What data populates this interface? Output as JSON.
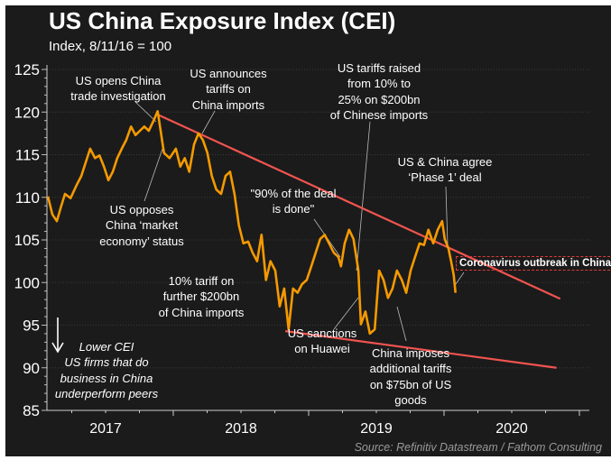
{
  "chart_data": {
    "type": "line",
    "title": "US China Exposure Index (CEI)",
    "subtitle": "Index, 8/11/16 = 100",
    "xlabel": "",
    "ylabel": "",
    "ylim": [
      85,
      125
    ],
    "yticks": [
      "125",
      "120",
      "115",
      "110",
      "105",
      "100",
      "95",
      "90",
      "85"
    ],
    "xticks": [
      "2017",
      "2018",
      "2019",
      "2020"
    ],
    "xlim": [
      "2017-01-15",
      "2021-01-15"
    ],
    "grid": "horizontal dotted",
    "legend": "none",
    "colors": {
      "series": "#f59a00",
      "trend": "#f0544f",
      "background": "#1b1b1b",
      "annotation_box": "#e03a3a"
    },
    "series": [
      {
        "dates": [
          "2017-01-28",
          "2017-02-09",
          "2017-02-21",
          "2017-03-05",
          "2017-03-15",
          "2017-03-30",
          "2017-04-16",
          "2017-04-28",
          "2017-05-10",
          "2017-05-22",
          "2017-06-04",
          "2017-06-16",
          "2017-06-28",
          "2017-07-10",
          "2017-07-22",
          "2017-08-03",
          "2017-08-15",
          "2017-08-27",
          "2017-09-09",
          "2017-09-21",
          "2017-10-03",
          "2017-10-15",
          "2017-10-27",
          "2017-11-08",
          "2017-11-20",
          "2017-11-28",
          "2017-12-07",
          "2017-12-22",
          "2018-01-08",
          "2018-01-20",
          "2018-02-01",
          "2018-02-13",
          "2018-02-26",
          "2018-03-10",
          "2018-03-22",
          "2018-04-03",
          "2018-04-15",
          "2018-04-27",
          "2018-05-10",
          "2018-05-22",
          "2018-06-03",
          "2018-06-15",
          "2018-06-27",
          "2018-07-09",
          "2018-07-22",
          "2018-08-03",
          "2018-08-15",
          "2018-08-27",
          "2018-09-08",
          "2018-09-20",
          "2018-10-03",
          "2018-10-15",
          "2018-10-27",
          "2018-11-08",
          "2018-11-20",
          "2018-12-02",
          "2018-12-14",
          "2018-12-27",
          "2019-01-08",
          "2019-01-20",
          "2019-02-01",
          "2019-02-13",
          "2019-02-25",
          "2019-03-10",
          "2019-03-22",
          "2019-03-29",
          "2019-04-08",
          "2019-04-20",
          "2019-05-02",
          "2019-05-15",
          "2019-05-22",
          "2019-06-03",
          "2019-06-15",
          "2019-06-28",
          "2019-07-10",
          "2019-07-22",
          "2019-08-03",
          "2019-08-15",
          "2019-08-27",
          "2019-09-09",
          "2019-09-21",
          "2019-10-03",
          "2019-10-15",
          "2019-10-27",
          "2019-11-08",
          "2019-11-20",
          "2019-12-03",
          "2019-12-15",
          "2019-12-27",
          "2020-01-03",
          "2020-01-13",
          "2020-01-20",
          "2020-01-27",
          "2020-02-01"
        ],
        "values": [
          110.1,
          108.0,
          107.2,
          109.0,
          110.4,
          109.9,
          111.5,
          112.5,
          114.1,
          115.7,
          114.6,
          114.9,
          113.6,
          112.0,
          113.0,
          114.6,
          115.7,
          116.7,
          118.3,
          117.3,
          117.8,
          118.3,
          117.8,
          118.9,
          120.1,
          117.8,
          115.2,
          114.6,
          115.7,
          113.6,
          114.6,
          113.0,
          116.2,
          117.5,
          116.7,
          115.2,
          112.5,
          110.9,
          110.4,
          112.5,
          113.0,
          110.4,
          106.7,
          104.6,
          104.8,
          103.5,
          102.5,
          105.6,
          100.3,
          102.5,
          101.4,
          97.2,
          99.3,
          94.5,
          99.3,
          98.8,
          99.8,
          100.3,
          101.9,
          103.5,
          105.1,
          105.6,
          104.6,
          103.5,
          103.0,
          101.9,
          104.6,
          106.2,
          105.1,
          101.4,
          95.1,
          96.6,
          94.0,
          94.5,
          101.4,
          100.3,
          98.2,
          99.3,
          101.4,
          100.3,
          98.8,
          101.4,
          103.0,
          104.6,
          104.4,
          106.2,
          104.6,
          106.2,
          107.2,
          105.1,
          104.0,
          102.5,
          100.9,
          98.8
        ]
      }
    ],
    "trendlines": [
      {
        "dates": [
          "2017-11-20",
          "2020-11-10"
        ],
        "values": [
          119.7,
          98.1
        ]
      },
      {
        "dates": [
          "2018-10-30",
          "2020-10-31"
        ],
        "values": [
          94.3,
          90.0
        ]
      }
    ],
    "annotations": [
      {
        "text": "US opens China\ntrade investigation"
      },
      {
        "text": "US announces\ntariffs on\nChina imports"
      },
      {
        "text": "US opposes\nChina ‘market\neconomy’ status"
      },
      {
        "text": "\"90% of the deal\nis done\""
      },
      {
        "text": "US tariffs raised\nfrom 10% to\n25% on $200bn\nof Chinese imports"
      },
      {
        "text": "US & China agree\n‘Phase 1’ deal"
      },
      {
        "text": "Coronavirus outbreak in China"
      },
      {
        "text": "10% tariff on\nfurther $200bn\nof China imports"
      },
      {
        "text": "US sanctions\non Huawei"
      },
      {
        "text": "China imposes\nadditional tariffs\non $75bn of US\ngoods"
      },
      {
        "text": "Lower CEI\nUS firms that do\nbusiness in China\nunderperform peers"
      }
    ],
    "source": "Source: Refinitiv Datastream / Fathom Consulting"
  }
}
